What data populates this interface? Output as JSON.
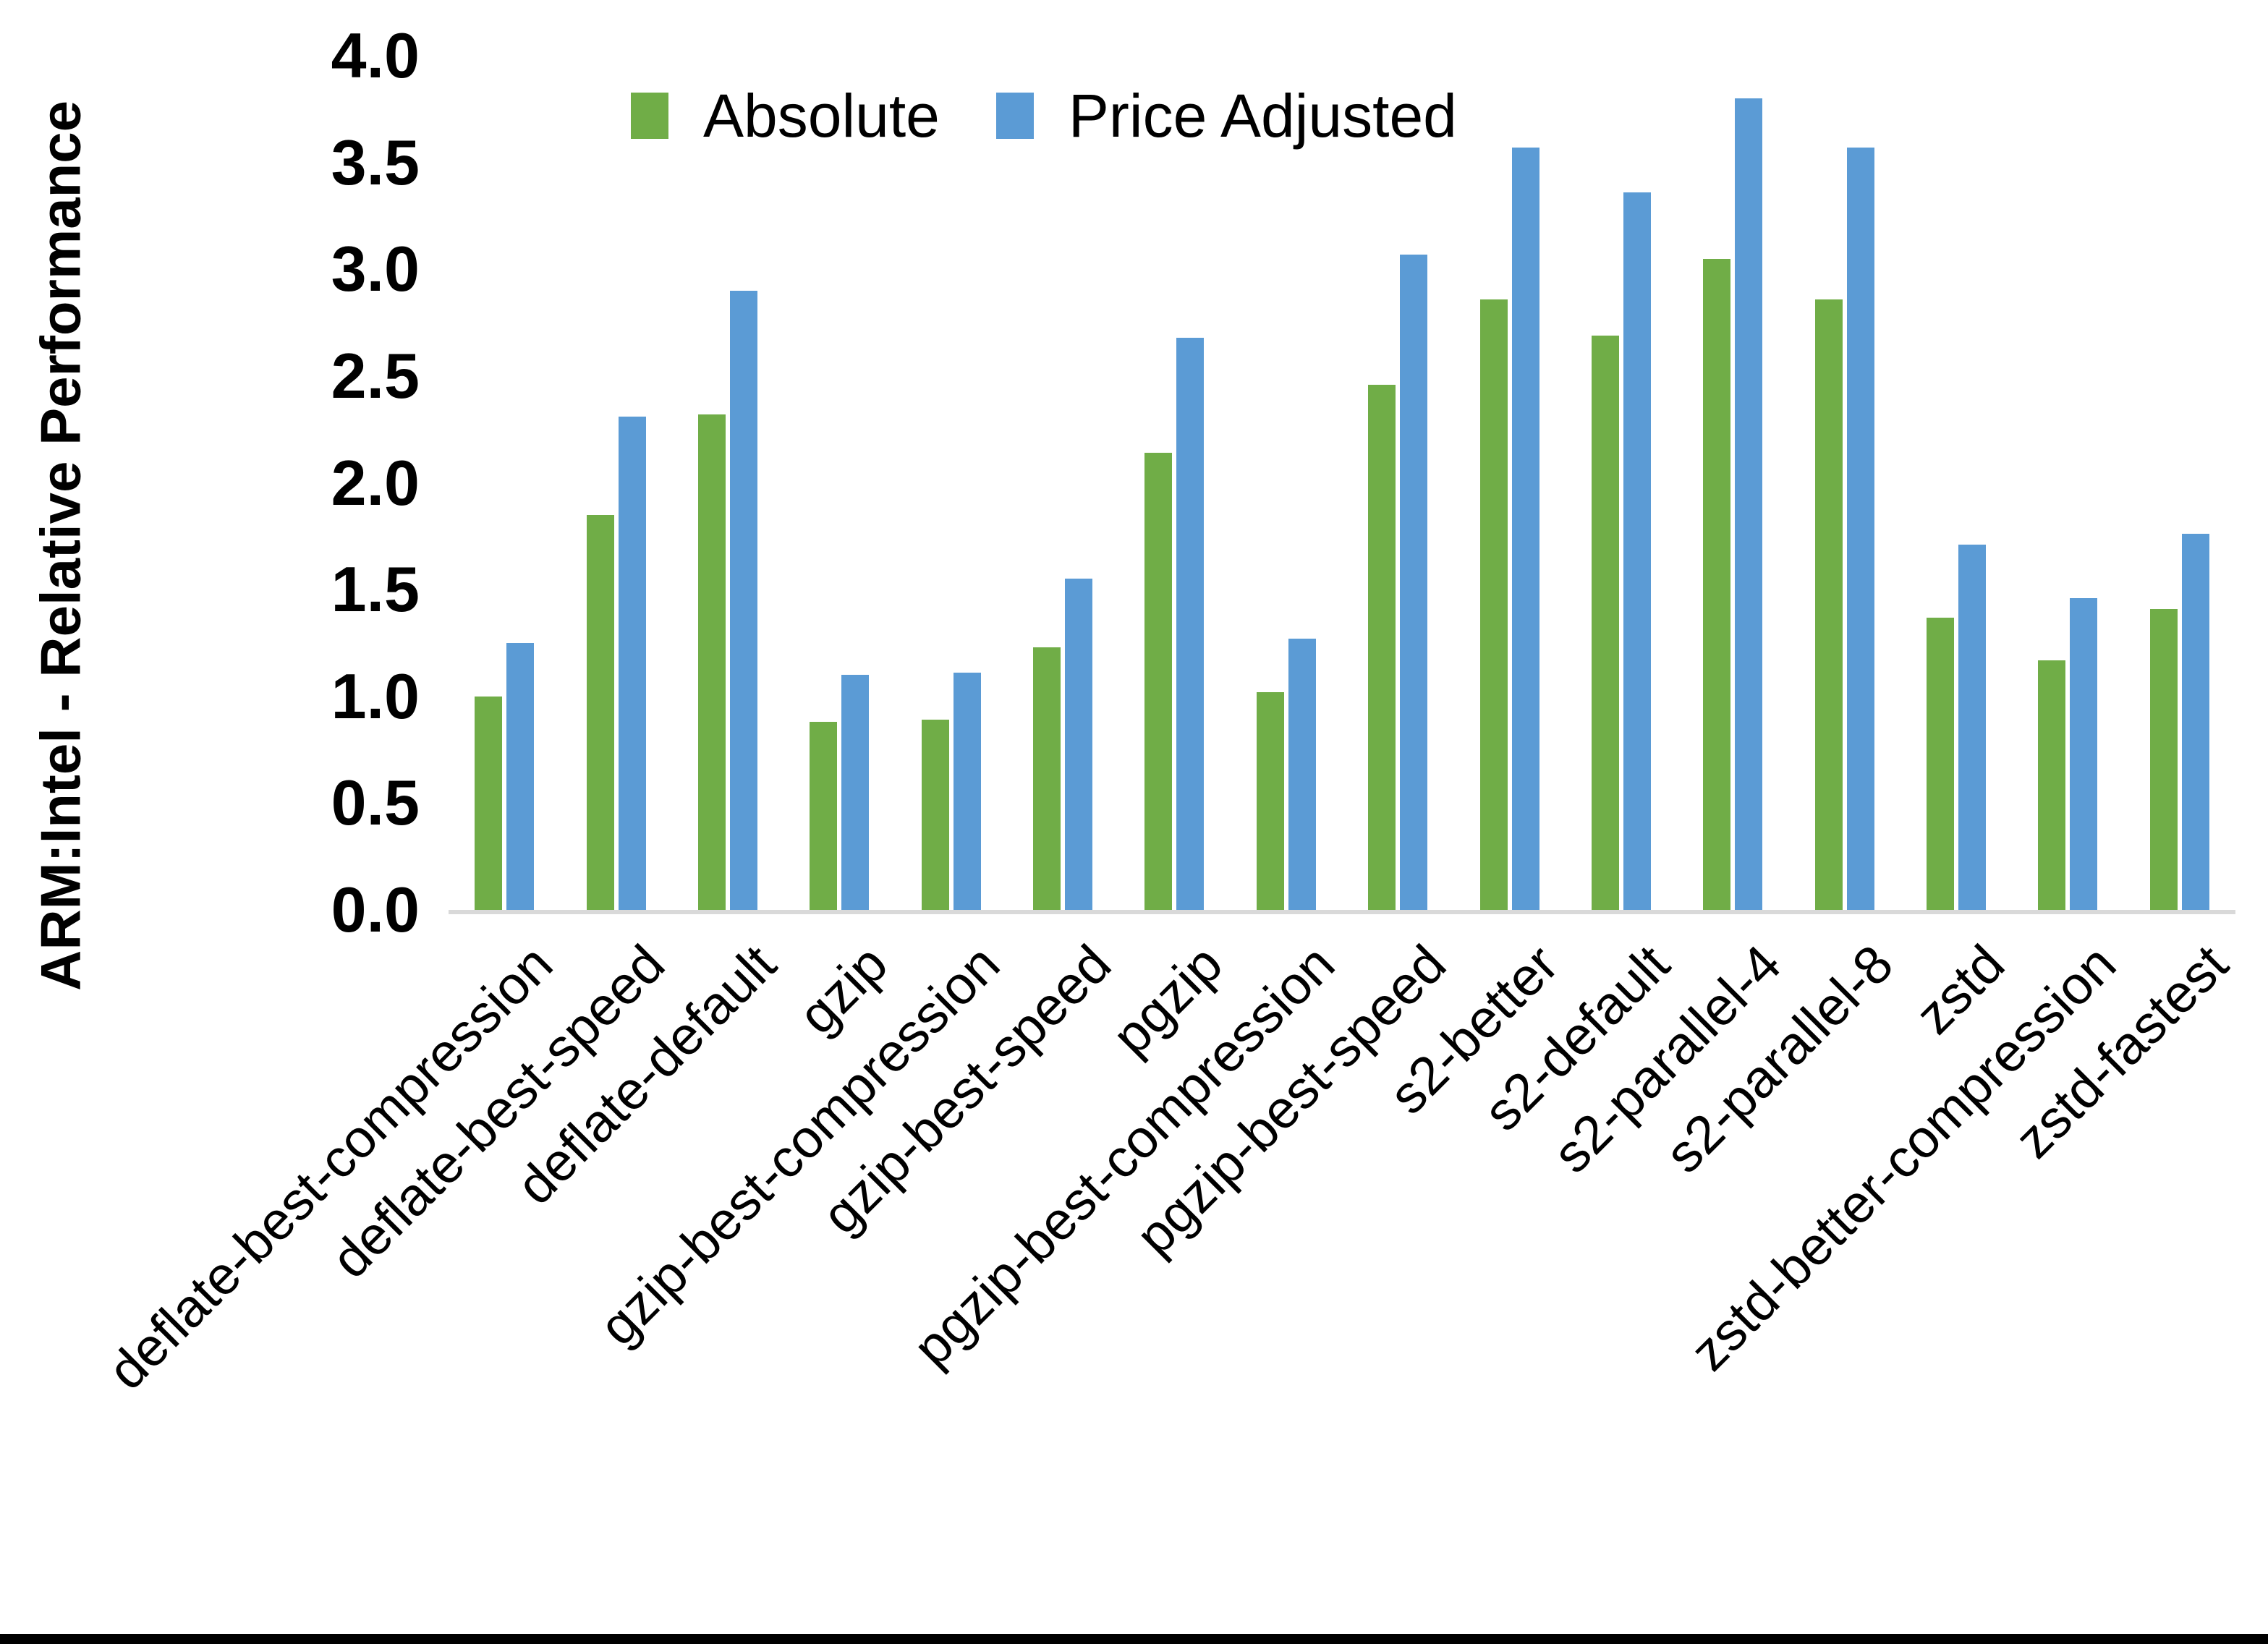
{
  "chart_data": {
    "type": "bar",
    "title": "",
    "xlabel": "",
    "ylabel": "ARM:Intel - Relative Performance",
    "ylim": [
      0,
      4
    ],
    "yticks": [
      "0.0",
      "0.5",
      "1.0",
      "1.5",
      "2.0",
      "2.5",
      "3.0",
      "3.5",
      "4.0"
    ],
    "grid": false,
    "legend_position": "top-center",
    "categories": [
      "deflate-best-compression",
      "deflate-best-speed",
      "deflate-default",
      "gzip",
      "gzip-best-compression",
      "gzip-best-speed",
      "pgzip",
      "pgzip-best-compression",
      "pgzip-best-speed",
      "s2-better",
      "s2-default",
      "s2-parallel-4",
      "s2-parallel-8",
      "zstd",
      "zstd-better-compression",
      "zstd-fastest"
    ],
    "series": [
      {
        "name": "Absolute",
        "color": "#70AD47",
        "values": [
          1.0,
          1.85,
          2.32,
          0.88,
          0.89,
          1.23,
          2.14,
          1.02,
          2.46,
          2.86,
          2.69,
          3.05,
          2.86,
          1.37,
          1.17,
          1.41
        ]
      },
      {
        "name": "Price Adjusted",
        "color": "#5B9BD5",
        "values": [
          1.25,
          2.31,
          2.9,
          1.1,
          1.11,
          1.55,
          2.68,
          1.27,
          3.07,
          3.57,
          3.36,
          3.8,
          3.57,
          1.71,
          1.46,
          1.76
        ]
      }
    ],
    "axis_line_color": "#D9D9D9",
    "frame_bottom_color": "#000000",
    "background_color": "#FFFFFF",
    "text_color": "#000000"
  }
}
